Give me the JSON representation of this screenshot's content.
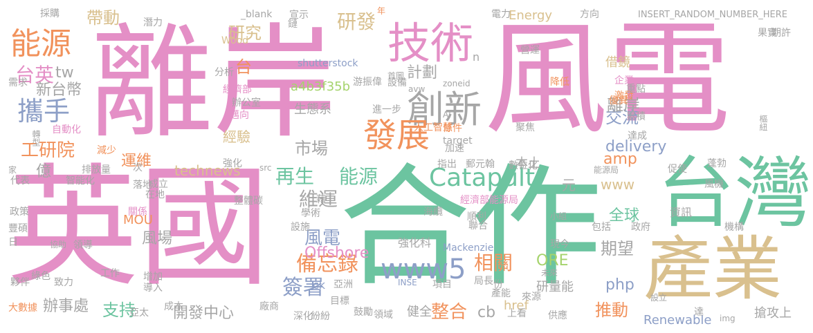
{
  "palette": {
    "pink": "#e48fc6",
    "teal": "#6cc4a0",
    "orange": "#f1925c",
    "sand": "#d9c08e",
    "blue": "#8d9fc7",
    "gray": "#a6a6a6",
    "green": "#a5d36c",
    "yellow": "#f2d24b"
  },
  "words": [
    {
      "text": "離岸",
      "color": "pink"
    },
    {
      "text": "風電",
      "color": "pink"
    },
    {
      "text": "英國",
      "color": "pink"
    },
    {
      "text": "合作",
      "color": "teal"
    },
    {
      "text": "台灣",
      "color": "teal"
    },
    {
      "text": "產業",
      "color": "sand"
    },
    {
      "text": "技術",
      "color": "pink"
    },
    {
      "text": "能源",
      "color": "orange"
    },
    {
      "text": "攜手",
      "color": "blue"
    },
    {
      "text": "創新",
      "color": "gray"
    },
    {
      "text": "發展",
      "color": "orange"
    },
    {
      "text": "台英",
      "color": "pink"
    },
    {
      "text": "tw",
      "color": "gray"
    },
    {
      "text": "新台幣",
      "color": "gray"
    },
    {
      "text": "工研院",
      "color": "orange"
    },
    {
      "text": "億",
      "color": "gray"
    },
    {
      "text": "研發",
      "color": "sand"
    },
    {
      "text": "研究",
      "color": "sand"
    },
    {
      "text": "帶動",
      "color": "sand"
    },
    {
      "text": "計劃",
      "color": "gray"
    },
    {
      "text": "交流",
      "color": "blue"
    },
    {
      "text": "借鏡",
      "color": "sand"
    },
    {
      "text": "離岸",
      "color": "gray"
    },
    {
      "text": "經驗",
      "color": "sand"
    },
    {
      "text": "市場",
      "color": "gray"
    },
    {
      "text": "生態系",
      "color": "gray"
    },
    {
      "text": "a4b3f35b",
      "color": "green"
    },
    {
      "text": "delivery",
      "color": "blue"
    },
    {
      "text": "amp",
      "color": "orange"
    },
    {
      "text": "再生",
      "color": "teal"
    },
    {
      "text": "能源",
      "color": "teal"
    },
    {
      "text": "Catapult",
      "color": "teal"
    },
    {
      "text": "維運",
      "color": "gray"
    },
    {
      "text": "technews",
      "color": "sand"
    },
    {
      "text": "www",
      "color": "sand"
    },
    {
      "text": "全球",
      "color": "teal"
    },
    {
      "text": "風場",
      "color": "gray"
    },
    {
      "text": "期望",
      "color": "gray"
    },
    {
      "text": "風電",
      "color": "blue"
    },
    {
      "text": "備忘錄",
      "color": "orange"
    },
    {
      "text": "Offshore",
      "color": "pink"
    },
    {
      "text": "www5",
      "color": "blue"
    },
    {
      "text": "相關",
      "color": "orange"
    },
    {
      "text": "ORE",
      "color": "green"
    },
    {
      "text": "php",
      "color": "blue"
    },
    {
      "text": "簽署",
      "color": "blue"
    },
    {
      "text": "支持",
      "color": "teal"
    },
    {
      "text": "辦事處",
      "color": "gray"
    },
    {
      "text": "開發中心",
      "color": "gray"
    },
    {
      "text": "整合",
      "color": "orange"
    },
    {
      "text": "推動",
      "color": "orange"
    },
    {
      "text": "Renewable",
      "color": "blue"
    },
    {
      "text": "搶攻上",
      "color": "gray"
    },
    {
      "text": "Energy",
      "color": "sand"
    },
    {
      "text": "運維",
      "color": "orange"
    },
    {
      "text": "MOU",
      "color": "orange"
    },
    {
      "text": "cb",
      "color": "gray"
    },
    {
      "text": "健全",
      "color": "gray"
    },
    {
      "text": "研量能",
      "color": "gray"
    },
    {
      "text": "強化科",
      "color": "gray"
    },
    {
      "text": "shutterstock",
      "color": "blue"
    },
    {
      "text": "INSERT_RANDOM_NUMBER_HERE",
      "color": "gray"
    },
    {
      "text": "元",
      "color": "gray"
    },
    {
      "text": "本土",
      "color": "gray"
    },
    {
      "text": "資訊",
      "color": "gray"
    },
    {
      "text": "台",
      "color": "orange"
    },
    {
      "text": "經濟部能源局",
      "color": "pink"
    },
    {
      "text": "Mackenzie",
      "color": "blue"
    },
    {
      "text": "_blank",
      "color": "gray"
    },
    {
      "text": "Wood",
      "color": "sand"
    },
    {
      "text": "href",
      "color": "sand"
    },
    {
      "text": "target",
      "color": "gray"
    },
    {
      "text": "src",
      "color": "gray"
    },
    {
      "text": "zoneid",
      "color": "gray"
    },
    {
      "text": "avw",
      "color": "gray"
    },
    {
      "text": "img",
      "color": "gray"
    },
    {
      "text": "AI",
      "color": "gray"
    },
    {
      "text": "INSE",
      "color": "blue"
    },
    {
      "text": "n",
      "color": "gray"
    },
    {
      "text": "ck",
      "color": "blue"
    },
    {
      "text": "亞洲",
      "color": "gray"
    },
    {
      "text": "a",
      "color": "pink"
    },
    {
      "text": "分析",
      "color": "gray"
    },
    {
      "text": "經濟部",
      "color": "pink"
    },
    {
      "text": "辦公室",
      "color": "gray"
    },
    {
      "text": "邁向",
      "color": "pink"
    },
    {
      "text": "首圖",
      "color": "gray"
    },
    {
      "text": "游振偉",
      "color": "gray"
    },
    {
      "text": "設備",
      "color": "gray"
    },
    {
      "text": "進一步",
      "color": "gray"
    },
    {
      "text": "人工智慧",
      "color": "orange"
    },
    {
      "text": "條件",
      "color": "orange"
    },
    {
      "text": "加速",
      "color": "gray"
    },
    {
      "text": "指出",
      "color": "gray"
    },
    {
      "text": "郵元翰",
      "color": "gray"
    },
    {
      "text": "數位化",
      "color": "gray"
    },
    {
      "text": "能源局",
      "color": "gray"
    },
    {
      "text": "聚焦",
      "color": "gray"
    },
    {
      "text": "營運",
      "color": "gray"
    },
    {
      "text": "降低",
      "color": "orange"
    },
    {
      "text": "企業",
      "color": "pink"
    },
    {
      "text": "激發",
      "color": "orange"
    },
    {
      "text": "優異",
      "color": "orange"
    },
    {
      "text": "重點",
      "color": "gray"
    },
    {
      "text": "累積",
      "color": "gray"
    },
    {
      "text": "達成",
      "color": "gray"
    },
    {
      "text": "蓬勃",
      "color": "gray"
    },
    {
      "text": "促使",
      "color": "gray"
    },
    {
      "text": "風機",
      "color": "gray"
    },
    {
      "text": "樞紐",
      "color": "gray"
    },
    {
      "text": "果實",
      "color": "gray"
    },
    {
      "text": "期許",
      "color": "gray"
    },
    {
      "text": "電力",
      "color": "gray"
    },
    {
      "text": "方向",
      "color": "gray"
    },
    {
      "text": "年",
      "color": "orange"
    },
    {
      "text": "宣示",
      "color": "gray"
    },
    {
      "text": "鏈",
      "color": "gray"
    },
    {
      "text": "潛力",
      "color": "gray"
    },
    {
      "text": "採購",
      "color": "gray"
    },
    {
      "text": "需求",
      "color": "gray"
    },
    {
      "text": "轉型",
      "color": "gray"
    },
    {
      "text": "自動化",
      "color": "pink"
    },
    {
      "text": "減少",
      "color": "orange"
    },
    {
      "text": "家",
      "color": "gray"
    },
    {
      "text": "排放量",
      "color": "gray"
    },
    {
      "text": "次",
      "color": "gray"
    },
    {
      "text": "成立",
      "color": "gray"
    },
    {
      "text": "代表",
      "color": "gray"
    },
    {
      "text": "智能化",
      "color": "gray"
    },
    {
      "text": "落地",
      "color": "gray"
    },
    {
      "text": "在地",
      "color": "gray"
    },
    {
      "text": "政策",
      "color": "gray"
    },
    {
      "text": "豐碩",
      "color": "gray"
    },
    {
      "text": "日",
      "color": "gray"
    },
    {
      "text": "關係",
      "color": "pink"
    },
    {
      "text": "協助",
      "color": "gray"
    },
    {
      "text": "領導",
      "color": "gray"
    },
    {
      "text": "綠色",
      "color": "gray"
    },
    {
      "text": "夥伴",
      "color": "gray"
    },
    {
      "text": "致力",
      "color": "gray"
    },
    {
      "text": "大數據",
      "color": "orange"
    },
    {
      "text": "工作",
      "color": "gray"
    },
    {
      "text": "增加",
      "color": "gray"
    },
    {
      "text": "導入",
      "color": "gray"
    },
    {
      "text": "亞太",
      "color": "gray"
    },
    {
      "text": "成本",
      "color": "gray"
    },
    {
      "text": "廠商",
      "color": "gray"
    },
    {
      "text": "深化",
      "color": "gray"
    },
    {
      "text": "紛紛",
      "color": "gray"
    },
    {
      "text": "鼓勵",
      "color": "gray"
    },
    {
      "text": "目標",
      "color": "gray"
    },
    {
      "text": "領域",
      "color": "gray"
    },
    {
      "text": "上看",
      "color": "gray"
    },
    {
      "text": "供應",
      "color": "gray"
    },
    {
      "text": "達",
      "color": "gray"
    },
    {
      "text": "設立",
      "color": "gray"
    },
    {
      "text": "來源",
      "color": "gray"
    },
    {
      "text": "局長",
      "color": "gray"
    },
    {
      "text": "項目",
      "color": "gray"
    },
    {
      "text": "份",
      "color": "gray"
    },
    {
      "text": "產能",
      "color": "gray"
    },
    {
      "text": "未來",
      "color": "gray"
    },
    {
      "text": "小組",
      "color": "gray"
    },
    {
      "text": "現今",
      "color": "gray"
    },
    {
      "text": "包括",
      "color": "gray"
    },
    {
      "text": "政府",
      "color": "gray"
    },
    {
      "text": "機構",
      "color": "gray"
    },
    {
      "text": "順利",
      "color": "gray"
    },
    {
      "text": "聯合",
      "color": "gray"
    },
    {
      "text": "海纜",
      "color": "gray"
    },
    {
      "text": "設施",
      "color": "gray"
    },
    {
      "text": "學術",
      "color": "gray"
    },
    {
      "text": "藉",
      "color": "gray"
    },
    {
      "text": "整體碳",
      "color": "gray"
    },
    {
      "text": "強化",
      "color": "gray"
    }
  ]
}
